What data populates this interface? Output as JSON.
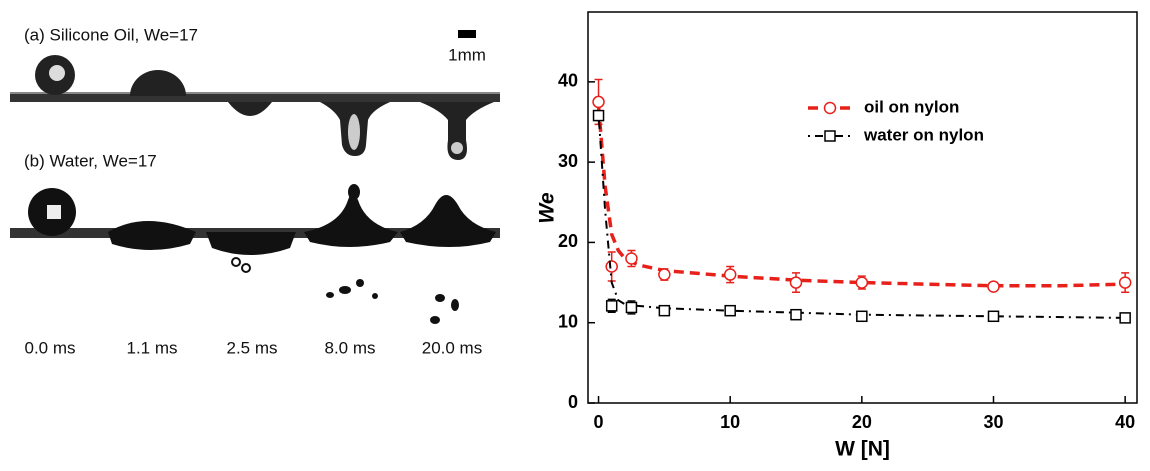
{
  "panel": {
    "label_a": "(a) Silicone Oil, We=17",
    "label_b": "(b) Water, We=17",
    "scale": "1mm",
    "times": [
      "0.0 ms",
      "1.1 ms",
      "2.5 ms",
      "8.0 ms",
      "20.0 ms"
    ]
  },
  "chart_data": {
    "type": "scatter",
    "xlabel": "W [N]",
    "ylabel": "We",
    "xlim": [
      -0.8,
      40.9
    ],
    "ylim": [
      0,
      48.7
    ],
    "xticks": [
      0,
      10,
      20,
      30,
      40
    ],
    "yticks": [
      0,
      10,
      20,
      30,
      40
    ],
    "series": [
      {
        "name": "oil on nylon",
        "color": "#e8201a",
        "marker": "circle",
        "x": [
          0,
          1,
          2.5,
          5,
          10,
          15,
          20,
          30,
          40
        ],
        "values": [
          37.5,
          17,
          18,
          16,
          16,
          15,
          15,
          14.5,
          15
        ],
        "errors": [
          2.8,
          1.8,
          1,
          0.7,
          1,
          1.2,
          0.8,
          0.5,
          1.2
        ],
        "fit": {
          "x": [
            0,
            0.5,
            1,
            1.5,
            2,
            3,
            5,
            10,
            15,
            20,
            25,
            30,
            35,
            40
          ],
          "values": [
            37,
            27,
            21,
            19,
            18,
            17.2,
            16.5,
            15.8,
            15.3,
            15,
            14.8,
            14.6,
            14.6,
            14.8
          ]
        }
      },
      {
        "name": "water on nylon",
        "color": "#000000",
        "marker": "square",
        "x": [
          0,
          1,
          2.5,
          5,
          10,
          15,
          20,
          30,
          40
        ],
        "values": [
          35.8,
          12.1,
          11.9,
          11.5,
          11.5,
          11,
          10.8,
          10.8,
          10.6
        ],
        "errors": [
          0.6,
          0.8,
          0.8,
          0.3,
          0.6,
          0.3,
          0.3,
          0.3,
          0.4
        ],
        "fit": {
          "x": [
            0,
            0.5,
            1,
            1.5,
            2,
            3,
            5,
            10,
            20,
            30,
            40
          ],
          "values": [
            36,
            24,
            15,
            12.8,
            12.3,
            12.1,
            11.8,
            11.5,
            11,
            10.8,
            10.6
          ]
        }
      }
    ]
  }
}
